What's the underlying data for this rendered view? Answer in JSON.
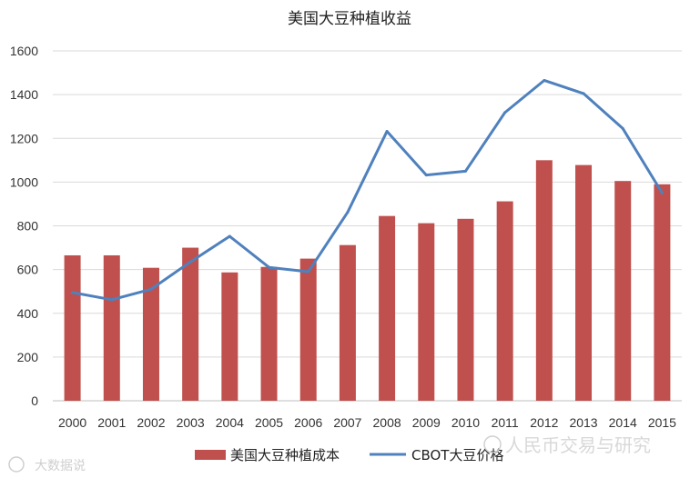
{
  "chart_data": {
    "type": "bar",
    "title": "美国大豆种植收益",
    "categories": [
      "2000",
      "2001",
      "2002",
      "2003",
      "2004",
      "2005",
      "2006",
      "2007",
      "2008",
      "2009",
      "2010",
      "2011",
      "2012",
      "2013",
      "2014",
      "2015"
    ],
    "series": [
      {
        "name": "美国大豆种植成本",
        "type": "bar",
        "color": "#c0504d",
        "values": [
          665,
          665,
          608,
          700,
          587,
          612,
          650,
          712,
          845,
          812,
          832,
          912,
          1100,
          1078,
          1005,
          990
        ]
      },
      {
        "name": "CBOT大豆价格",
        "type": "line",
        "color": "#4f81bd",
        "values": [
          495,
          462,
          510,
          635,
          752,
          610,
          590,
          862,
          1232,
          1032,
          1050,
          1318,
          1465,
          1405,
          1245,
          950
        ]
      }
    ],
    "ylim": [
      0,
      1600
    ],
    "yticks": [
      "0",
      "200",
      "400",
      "600",
      "800",
      "1000",
      "1200",
      "1400",
      "1600"
    ],
    "grid": true,
    "legend_position": "bottom"
  },
  "watermarks": {
    "bottom_left": "大数据说",
    "bottom_right": "人民币交易与研究"
  }
}
